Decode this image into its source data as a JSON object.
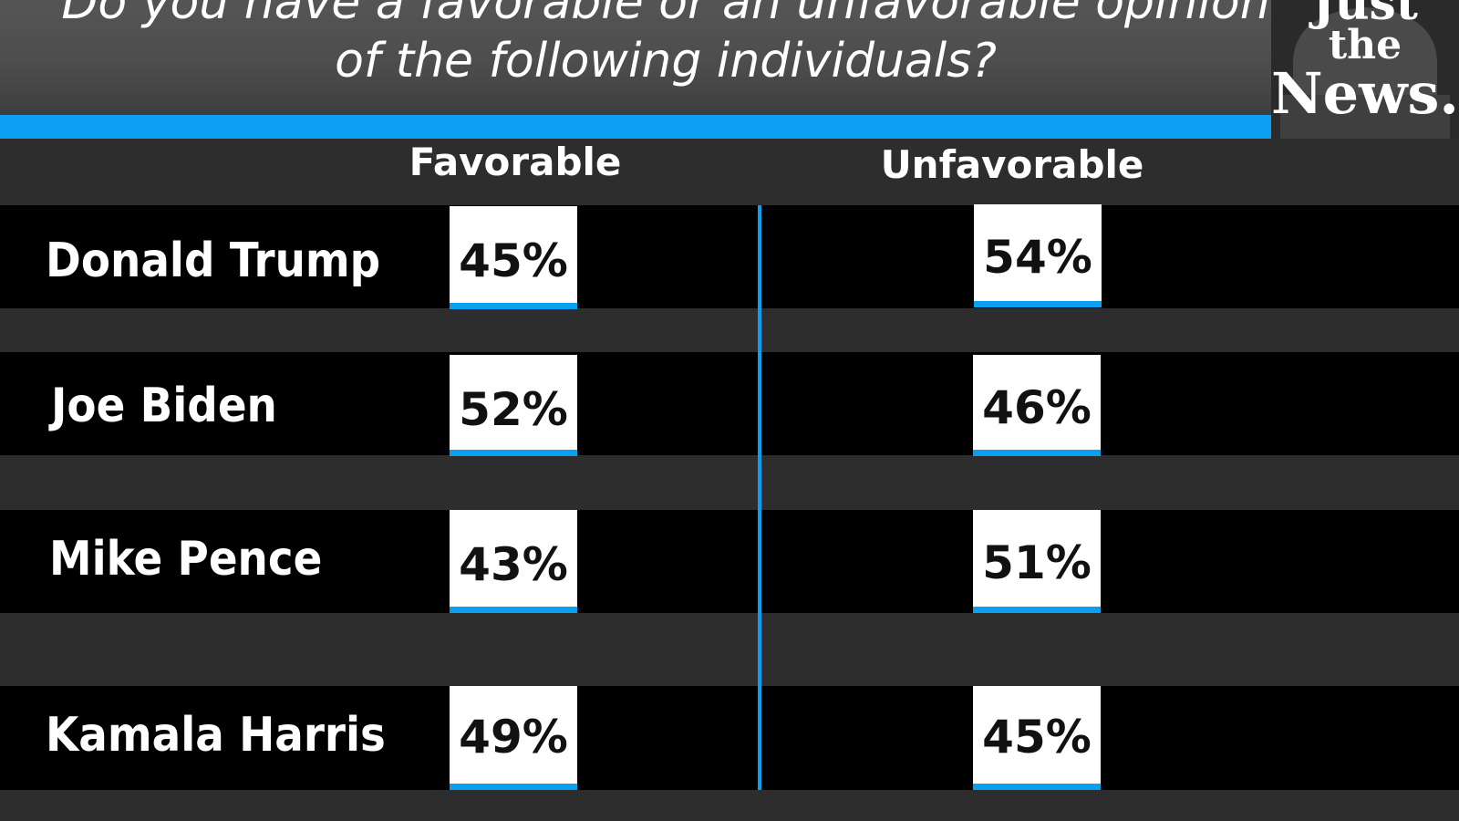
{
  "question": {
    "line1": "Do you have a favorable or an unfavorable opinion",
    "line2": "of the following individuals?"
  },
  "logo": {
    "line1": "Just",
    "line2": "the",
    "line3": "News."
  },
  "colors": {
    "accent": "#0a9ff0",
    "background": "#2d2d2d",
    "row_band": "#000000",
    "value_box": "#ffffff"
  },
  "chart_data": {
    "type": "table",
    "title": "Do you have a favorable or an unfavorable opinion of the following individuals?",
    "columns": [
      "Favorable",
      "Unfavorable"
    ],
    "rows": [
      {
        "name": "Donald Trump",
        "favorable": "45%",
        "unfavorable": "54%"
      },
      {
        "name": "Joe Biden",
        "favorable": "52%",
        "unfavorable": "46%"
      },
      {
        "name": "Mike Pence",
        "favorable": "43%",
        "unfavorable": "51%"
      },
      {
        "name": "Kamala Harris",
        "favorable": "49%",
        "unfavorable": "45%"
      }
    ]
  }
}
